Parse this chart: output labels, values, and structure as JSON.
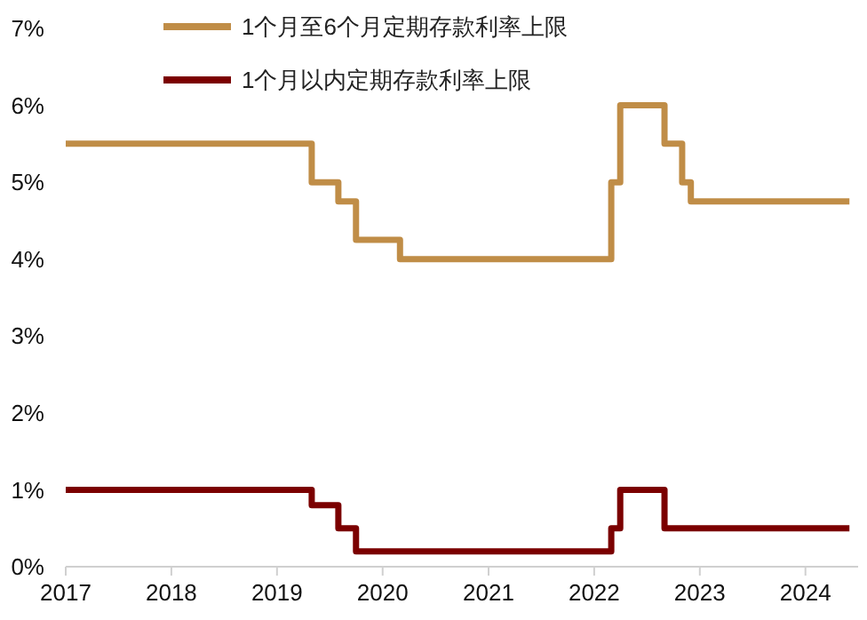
{
  "chart_data": {
    "type": "step",
    "x": [
      "2017-01",
      "2019-05",
      "2019-08",
      "2019-10",
      "2020-03",
      "2022-03",
      "2022-04",
      "2022-09",
      "2022-11",
      "2022-12",
      "2024-06"
    ],
    "series": [
      {
        "name": "1个月至6个月定期存款利率上限",
        "color": "#c08d47",
        "values": [
          5.5,
          5.0,
          4.75,
          4.25,
          4.0,
          5.0,
          6.0,
          5.5,
          5.0,
          4.75,
          4.75
        ]
      },
      {
        "name": "1个月以内定期存款利率上限",
        "color": "#7b0000",
        "values": [
          1.0,
          0.8,
          0.5,
          0.2,
          0.2,
          0.5,
          1.0,
          0.5,
          0.5,
          0.5,
          0.5
        ]
      }
    ],
    "xlim": [
      "2017-01",
      "2024-07"
    ],
    "xticks": [
      {
        "value": "2017-01",
        "label": "2017"
      },
      {
        "value": "2018-01",
        "label": "2018"
      },
      {
        "value": "2019-01",
        "label": "2019"
      },
      {
        "value": "2020-01",
        "label": "2020"
      },
      {
        "value": "2021-01",
        "label": "2021"
      },
      {
        "value": "2022-01",
        "label": "2022"
      },
      {
        "value": "2023-01",
        "label": "2023"
      },
      {
        "value": "2024-01",
        "label": "2024"
      }
    ],
    "ylim": [
      0,
      7
    ],
    "yticks": [
      {
        "value": 0,
        "label": "0%"
      },
      {
        "value": 1,
        "label": "1%"
      },
      {
        "value": 2,
        "label": "2%"
      },
      {
        "value": 3,
        "label": "3%"
      },
      {
        "value": 4,
        "label": "4%"
      },
      {
        "value": 5,
        "label": "5%"
      },
      {
        "value": 6,
        "label": "6%"
      },
      {
        "value": 7,
        "label": "7%"
      }
    ],
    "grid": false,
    "legend": "top",
    "line_style": "solid",
    "marker": "none"
  }
}
